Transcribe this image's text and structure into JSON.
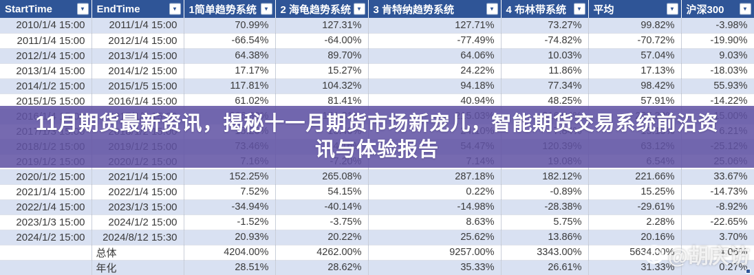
{
  "colors": {
    "header_bg": "#2F5597",
    "band_row": "#D9E1F2",
    "overlay_purple": "#5F52A3",
    "banner_text": "#FFFFFF",
    "cell_text": "#3A3A3A",
    "selection_blue": "#2F5597"
  },
  "overlay": {
    "line1": "11月期货最新资讯，揭秘十一月期货市场新宠儿，智能期货交易系统前沿资",
    "line2": "讯与体验报告"
  },
  "watermark": {
    "text": "@胡庆访",
    "logo": "weibo-camera-logo"
  },
  "table": {
    "columns": [
      {
        "label": "StartTime"
      },
      {
        "label": "EndTime"
      },
      {
        "label": "1简单趋势系统"
      },
      {
        "label": "2 海龟趋势系统"
      },
      {
        "label": "3 肯特纳趋势系统"
      },
      {
        "label": "4 布林带系统"
      },
      {
        "label": "平均"
      },
      {
        "label": "沪深300"
      }
    ],
    "rows": [
      [
        "2010/1/4 15:00",
        "2011/1/4 15:00",
        "70.99%",
        "127.31%",
        "127.71%",
        "73.27%",
        "99.82%",
        "-3.98%"
      ],
      [
        "2011/1/4 15:00",
        "2012/1/4 15:00",
        "-66.54%",
        "-64.00%",
        "-77.49%",
        "-74.82%",
        "-70.72%",
        "-19.90%"
      ],
      [
        "2012/1/4 15:00",
        "2013/1/4 15:00",
        "64.38%",
        "89.70%",
        "64.06%",
        "10.03%",
        "57.04%",
        "9.03%"
      ],
      [
        "2013/1/4 15:00",
        "2014/1/2 15:00",
        "17.17%",
        "15.27%",
        "24.22%",
        "11.86%",
        "17.13%",
        "-18.03%"
      ],
      [
        "2014/1/2 15:00",
        "2015/1/5 15:00",
        "117.81%",
        "104.32%",
        "94.18%",
        "77.34%",
        "98.42%",
        "55.93%"
      ],
      [
        "2015/1/5 15:00",
        "2016/1/4 15:00",
        "61.02%",
        "81.41%",
        "40.94%",
        "48.25%",
        "57.91%",
        "-14.22%"
      ],
      [
        "2016/1/4 15:00",
        "2017/1/3 15:00",
        "266.82%",
        "151.31%",
        "215.03%",
        "316.04%",
        "237.30%",
        "-15.00%"
      ],
      [
        "2017/1/3 15:00",
        "2018/1/2 15:00",
        "15.26%",
        "13.40%",
        "24.10%",
        "7.84%",
        "15.15%",
        "6.21%"
      ],
      [
        "2018/1/2 15:00",
        "2019/1/2 15:00",
        "73.46%",
        "4.16%",
        "54.47%",
        "120.39%",
        "63.12%",
        "-25.12%"
      ],
      [
        "2019/1/2 15:00",
        "2020/1/2 15:00",
        "7.16%",
        "-7.20%",
        "7.14%",
        "19.08%",
        "6.54%",
        "25.06%"
      ],
      [
        "2020/1/2 15:00",
        "2021/1/4 15:00",
        "152.25%",
        "265.08%",
        "287.18%",
        "182.12%",
        "221.66%",
        "33.67%"
      ],
      [
        "2021/1/4 15:00",
        "2022/1/4 15:00",
        "7.52%",
        "54.15%",
        "0.22%",
        "-0.89%",
        "15.25%",
        "-14.73%"
      ],
      [
        "2022/1/4 15:00",
        "2023/1/3 15:00",
        "-34.94%",
        "-40.14%",
        "-14.98%",
        "-28.38%",
        "-29.61%",
        "-8.92%"
      ],
      [
        "2023/1/3 15:00",
        "2024/1/2 15:00",
        "-1.52%",
        "-3.75%",
        "8.63%",
        "5.75%",
        "2.28%",
        "-22.65%"
      ],
      [
        "2024/1/2 15:00",
        "2024/8/12 15:30",
        "20.93%",
        "20.22%",
        "25.62%",
        "13.86%",
        "20.16%",
        "3.70%"
      ],
      [
        "",
        "总体",
        "4204.00%",
        "4262.00%",
        "9257.00%",
        "3343.00%",
        "5634.00%",
        "4.06%"
      ],
      [
        "",
        "年化",
        "28.51%",
        "28.62%",
        "35.33%",
        "26.61%",
        "31.33%",
        "0.27%"
      ]
    ]
  }
}
